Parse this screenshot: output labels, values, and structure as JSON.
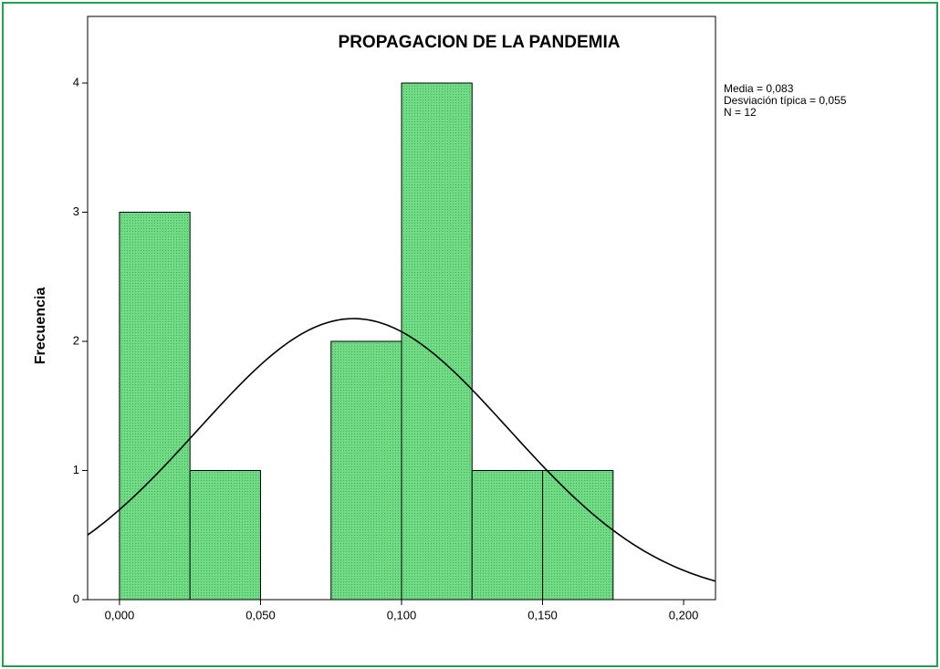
{
  "chart_data": {
    "type": "histogram",
    "title": "PROPAGACION DE LA PANDEMIA",
    "ylabel": "Frecuencia",
    "bins": [
      0,
      0.025,
      0.05,
      0.075,
      0.1,
      0.125,
      0.15,
      0.175
    ],
    "values": [
      3,
      1,
      0,
      2,
      4,
      1,
      1
    ],
    "color": "#6fdc85",
    "xlim": [
      -0.0113,
      0.2113
    ],
    "xticks": [
      {
        "value": 0,
        "label": "0,000"
      },
      {
        "value": 0.05,
        "label": "0,050"
      },
      {
        "value": 0.1,
        "label": "0,100"
      },
      {
        "value": 0.15,
        "label": "0,150"
      },
      {
        "value": 0.2,
        "label": "0,200"
      }
    ],
    "ylim": [
      0,
      4.516
    ],
    "yticks": [
      0,
      1,
      2,
      3,
      4
    ],
    "normal_curve": {
      "mean": 0.083,
      "sd": 0.055,
      "n": 12
    },
    "stats": [
      "Media = 0,083",
      "Desviación típica = 0,055",
      "N = 12"
    ]
  }
}
